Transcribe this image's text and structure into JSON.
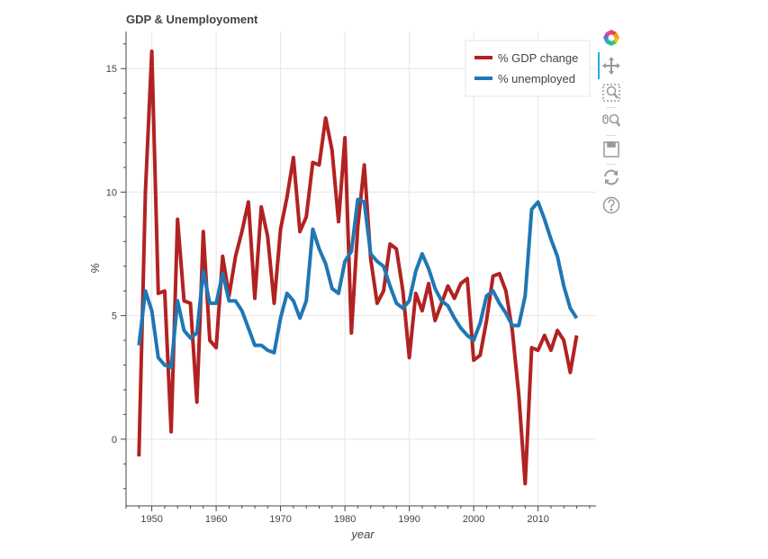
{
  "colors": {
    "gdp": "#b22222",
    "unemployment": "#1f77b4",
    "grid": "#e5e5e5",
    "axis": "#444444",
    "active_tool": "#26aae1"
  },
  "toolbar": {
    "tools": [
      {
        "id": "bokeh-logo",
        "icon": "bokeh-logo-icon"
      },
      {
        "id": "pan",
        "icon": "pan-icon",
        "active": true
      },
      {
        "id": "box-zoom",
        "icon": "box-zoom-icon"
      },
      {
        "id": "wheel-zoom",
        "icon": "wheel-zoom-icon"
      },
      {
        "id": "save",
        "icon": "save-icon"
      },
      {
        "id": "reset",
        "icon": "reset-icon"
      },
      {
        "id": "help",
        "icon": "help-icon"
      }
    ]
  },
  "chart_data": {
    "type": "line",
    "title": "GDP & Unemployoment",
    "xlabel": "year",
    "ylabel": "%",
    "xlim": [
      1946,
      2019
    ],
    "ylim": [
      -2.7,
      16.5
    ],
    "xticks": [
      1950,
      1960,
      1970,
      1980,
      1990,
      2000,
      2010
    ],
    "yticks": [
      0,
      5,
      10,
      15
    ],
    "grid": true,
    "legend_position": "top-right",
    "x": [
      1948,
      1949,
      1950,
      1951,
      1952,
      1953,
      1954,
      1955,
      1956,
      1957,
      1958,
      1959,
      1960,
      1961,
      1962,
      1963,
      1964,
      1965,
      1966,
      1967,
      1968,
      1969,
      1970,
      1971,
      1972,
      1973,
      1974,
      1975,
      1976,
      1977,
      1978,
      1979,
      1980,
      1981,
      1982,
      1983,
      1984,
      1985,
      1986,
      1987,
      1988,
      1989,
      1990,
      1991,
      1992,
      1993,
      1994,
      1995,
      1996,
      1997,
      1998,
      1999,
      2000,
      2001,
      2002,
      2003,
      2004,
      2005,
      2006,
      2007,
      2008,
      2009,
      2010,
      2011,
      2012,
      2013,
      2014,
      2015,
      2016
    ],
    "series": [
      {
        "name": "% GDP change",
        "color": "#b22222",
        "values": [
          -0.7,
          10.0,
          15.7,
          5.9,
          6.0,
          0.3,
          8.9,
          5.6,
          5.5,
          1.5,
          8.4,
          4.0,
          3.7,
          7.4,
          5.8,
          7.4,
          8.4,
          9.6,
          5.7,
          9.4,
          8.2,
          5.5,
          8.5,
          9.8,
          11.4,
          8.4,
          9.0,
          11.2,
          11.1,
          13.0,
          11.7,
          8.8,
          12.2,
          4.3,
          8.6,
          11.1,
          7.3,
          5.5,
          6.0,
          7.9,
          7.7,
          6.0,
          3.3,
          5.9,
          5.2,
          6.3,
          4.8,
          5.5,
          6.2,
          5.7,
          6.3,
          6.5,
          3.2,
          3.4,
          4.8,
          6.6,
          6.7,
          6.0,
          4.4,
          1.8,
          -1.8,
          3.7,
          3.6,
          4.2,
          3.6,
          4.4,
          4.0,
          2.7,
          4.2
        ]
      },
      {
        "name": "% unemployed",
        "color": "#1f77b4",
        "values": [
          3.8,
          6.0,
          5.2,
          3.3,
          3.0,
          2.9,
          5.6,
          4.4,
          4.1,
          4.3,
          6.8,
          5.5,
          5.5,
          6.7,
          5.6,
          5.6,
          5.2,
          4.5,
          3.8,
          3.8,
          3.6,
          3.5,
          4.9,
          5.9,
          5.6,
          4.9,
          5.6,
          8.5,
          7.7,
          7.1,
          6.1,
          5.9,
          7.2,
          7.6,
          9.7,
          9.6,
          7.5,
          7.2,
          7.0,
          6.2,
          5.5,
          5.3,
          5.6,
          6.8,
          7.5,
          6.9,
          6.1,
          5.6,
          5.4,
          4.9,
          4.5,
          4.2,
          4.0,
          4.7,
          5.8,
          6.0,
          5.5,
          5.1,
          4.6,
          4.6,
          5.8,
          9.3,
          9.6,
          8.9,
          8.1,
          7.4,
          6.2,
          5.3,
          4.9
        ]
      }
    ]
  }
}
